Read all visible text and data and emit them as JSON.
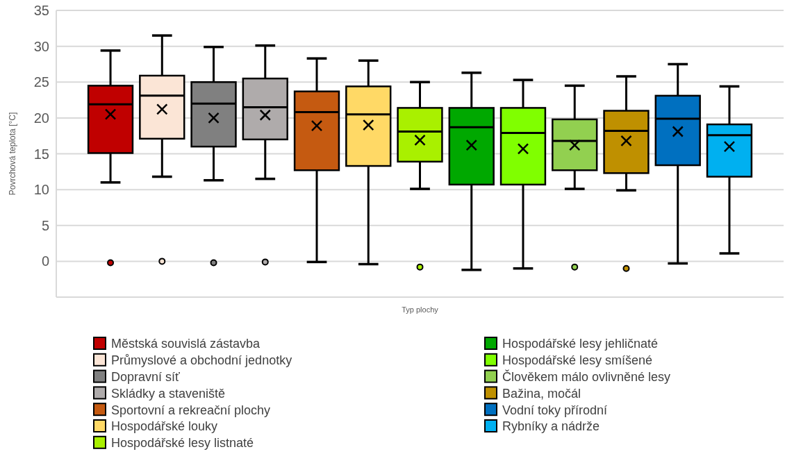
{
  "chart_data": {
    "type": "box",
    "xlabel": "Typ plochy",
    "ylabel": "Povrchová teplota [°C]",
    "categories": [
      null
    ],
    "ylim": [
      -5,
      35
    ],
    "yticks": [
      0,
      5,
      10,
      15,
      20,
      25,
      30,
      35
    ],
    "grid": "y",
    "legend": "bottom",
    "marker": "circle",
    "series": [
      {
        "name": "Městská souvislá zástavba",
        "color": "#c00000",
        "boxes": [
          {
            "low": 11.0,
            "q1": 15.1,
            "median": 21.9,
            "q3": 24.5,
            "high": 29.4,
            "mean": 20.5,
            "outliers": [
              -0.2
            ]
          }
        ]
      },
      {
        "name": "Průmyslové a obchodní jednotky",
        "color": "#fbe5d6",
        "boxes": [
          {
            "low": 11.8,
            "q1": 17.1,
            "median": 23.1,
            "q3": 25.9,
            "high": 31.5,
            "mean": 21.2,
            "outliers": [
              0
            ]
          }
        ]
      },
      {
        "name": "Dopravní síť",
        "color": "#808080",
        "boxes": [
          {
            "low": 11.3,
            "q1": 16.0,
            "median": 22.0,
            "q3": 25.0,
            "high": 29.9,
            "mean": 20.0,
            "outliers": [
              -0.2
            ]
          }
        ]
      },
      {
        "name": "Skládky a staveniště",
        "color": "#afabab",
        "boxes": [
          {
            "low": 11.5,
            "q1": 17.0,
            "median": 21.5,
            "q3": 25.5,
            "high": 30.1,
            "mean": 20.4,
            "outliers": [
              -0.1
            ]
          }
        ]
      },
      {
        "name": "Sportovní a rekreační plochy",
        "color": "#c55a11",
        "boxes": [
          {
            "low": -0.1,
            "q1": 12.7,
            "median": 20.8,
            "q3": 23.7,
            "high": 28.3,
            "mean": 18.9
          }
        ]
      },
      {
        "name": "Hospodářské louky",
        "color": "#ffd966",
        "boxes": [
          {
            "low": -0.4,
            "q1": 13.3,
            "median": 20.5,
            "q3": 24.4,
            "high": 28.0,
            "mean": 19.0
          }
        ]
      },
      {
        "name": "Hospodářské lesy listnaté",
        "color": "#a9f000",
        "boxes": [
          {
            "low": 10.1,
            "q1": 13.9,
            "median": 18.1,
            "q3": 21.4,
            "high": 25.0,
            "mean": 16.9,
            "outliers": [
              -0.8
            ]
          }
        ]
      },
      {
        "name": "Hospodářské lesy jehličnaté",
        "color": "#00a800",
        "boxes": [
          {
            "low": -1.2,
            "q1": 10.7,
            "median": 18.7,
            "q3": 21.4,
            "high": 26.3,
            "mean": 16.2
          }
        ]
      },
      {
        "name": "Hospodářské lesy smíšené",
        "color": "#80ff00",
        "boxes": [
          {
            "low": -1.0,
            "q1": 10.7,
            "median": 17.9,
            "q3": 21.4,
            "high": 25.3,
            "mean": 15.7
          }
        ]
      },
      {
        "name": "Člověkem málo ovlivněné lesy",
        "color": "#92d050",
        "boxes": [
          {
            "low": 10.1,
            "q1": 12.7,
            "median": 16.8,
            "q3": 19.8,
            "high": 24.5,
            "mean": 16.2,
            "outliers": [
              -0.8
            ]
          }
        ]
      },
      {
        "name": "Bažina, močál",
        "color": "#bf9000",
        "boxes": [
          {
            "low": 9.9,
            "q1": 12.3,
            "median": 18.2,
            "q3": 21.0,
            "high": 25.8,
            "mean": 16.8,
            "outliers": [
              -1.0
            ]
          }
        ]
      },
      {
        "name": "Vodní toky přírodní",
        "color": "#0070c0",
        "boxes": [
          {
            "low": -0.3,
            "q1": 13.4,
            "median": 19.9,
            "q3": 23.1,
            "high": 27.5,
            "mean": 18.1
          }
        ]
      },
      {
        "name": "Rybníky a nádrže",
        "color": "#00b0f0",
        "boxes": [
          {
            "low": 1.1,
            "q1": 11.8,
            "median": 17.6,
            "q3": 19.1,
            "high": 24.4,
            "mean": 16.0
          }
        ]
      }
    ]
  }
}
